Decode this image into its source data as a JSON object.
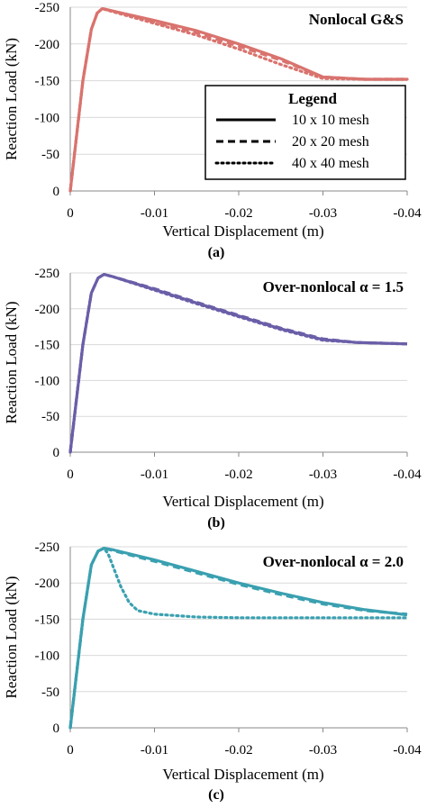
{
  "chart_data": [
    {
      "type": "line",
      "panel_label": "(a)",
      "title": "Nonlocal G&S",
      "xlabel": "Vertical Displacement (m)",
      "ylabel": "Reaction Load (kN)",
      "xlim": [
        0,
        -0.04
      ],
      "ylim": [
        0,
        -250
      ],
      "xticks": [
        0,
        -0.01,
        -0.02,
        -0.03,
        -0.04
      ],
      "xtick_labels": [
        "0",
        "-0.01",
        "-0.02",
        "-0.03",
        "-0.04"
      ],
      "yticks": [
        0,
        -50,
        -100,
        -150,
        -200,
        -250
      ],
      "ytick_labels": [
        "0",
        "-50",
        "-100",
        "-150",
        "-200",
        "-250"
      ],
      "grid": "horizontal",
      "color": "#d9736e",
      "legend": {
        "title": "Legend",
        "placement": "right",
        "entries": [
          "10 x 10 mesh",
          "20 x 20 mesh",
          "40 x 40 mesh"
        ]
      },
      "series": [
        {
          "name": "10 x 10 mesh",
          "style": "solid",
          "x": [
            0,
            -0.0015,
            -0.0025,
            -0.0032,
            -0.0038,
            -0.005,
            -0.01,
            -0.015,
            -0.02,
            -0.025,
            -0.03,
            -0.035,
            -0.04
          ],
          "y": [
            0,
            -150,
            -220,
            -242,
            -248,
            -245,
            -232,
            -218,
            -200,
            -180,
            -155,
            -152,
            -152
          ]
        },
        {
          "name": "20 x 20 mesh",
          "style": "dashed",
          "x": [
            0,
            -0.0015,
            -0.0025,
            -0.0032,
            -0.0038,
            -0.005,
            -0.01,
            -0.015,
            -0.02,
            -0.025,
            -0.03,
            -0.035,
            -0.04
          ],
          "y": [
            0,
            -150,
            -220,
            -242,
            -248,
            -245,
            -230,
            -215,
            -197,
            -178,
            -155,
            -152,
            -152
          ]
        },
        {
          "name": "40 x 40 mesh",
          "style": "dotted",
          "x": [
            0,
            -0.0015,
            -0.0025,
            -0.0032,
            -0.0038,
            -0.005,
            -0.01,
            -0.015,
            -0.02,
            -0.025,
            -0.03,
            -0.035,
            -0.04
          ],
          "y": [
            0,
            -150,
            -220,
            -242,
            -248,
            -244,
            -228,
            -212,
            -193,
            -172,
            -153,
            -152,
            -152
          ]
        }
      ]
    },
    {
      "type": "line",
      "panel_label": "(b)",
      "title": "Over-nonlocal α = 1.5",
      "xlabel": "Vertical Displacement (m)",
      "ylabel": "Reaction Load (kN)",
      "xlim": [
        0,
        -0.04
      ],
      "ylim": [
        0,
        -250
      ],
      "xticks": [
        0,
        -0.01,
        -0.02,
        -0.03,
        -0.04
      ],
      "xtick_labels": [
        "0",
        "-0.01",
        "-0.02",
        "-0.03",
        "-0.04"
      ],
      "yticks": [
        0,
        -50,
        -100,
        -150,
        -200,
        -250
      ],
      "ytick_labels": [
        "0",
        "-50",
        "-100",
        "-150",
        "-200",
        "-250"
      ],
      "grid": "horizontal",
      "color": "#6b5ea8",
      "series": [
        {
          "style": "solid",
          "x": [
            0,
            -0.0015,
            -0.0025,
            -0.0033,
            -0.004,
            -0.005,
            -0.01,
            -0.015,
            -0.02,
            -0.025,
            -0.03,
            -0.034,
            -0.04
          ],
          "y": [
            0,
            -150,
            -222,
            -243,
            -248,
            -245,
            -227,
            -208,
            -190,
            -172,
            -157,
            -153,
            -151
          ]
        },
        {
          "style": "dashed",
          "x": [
            0,
            -0.0015,
            -0.0025,
            -0.0033,
            -0.004,
            -0.005,
            -0.01,
            -0.015,
            -0.02,
            -0.025,
            -0.03,
            -0.034,
            -0.04
          ],
          "y": [
            0,
            -150,
            -222,
            -243,
            -248,
            -245,
            -228,
            -209,
            -191,
            -173,
            -158,
            -153,
            -151
          ]
        },
        {
          "style": "dotted",
          "x": [
            0,
            -0.0015,
            -0.0025,
            -0.0033,
            -0.004,
            -0.005,
            -0.01,
            -0.015,
            -0.02,
            -0.025,
            -0.03,
            -0.034,
            -0.04
          ],
          "y": [
            0,
            -150,
            -222,
            -243,
            -248,
            -245,
            -226,
            -207,
            -189,
            -171,
            -156,
            -153,
            -151
          ]
        }
      ]
    },
    {
      "type": "line",
      "panel_label": "(c)",
      "title": "Over-nonlocal α = 2.0",
      "xlabel": "Vertical Displacement (m)",
      "ylabel": "Reaction Load (kN)",
      "xlim": [
        0,
        -0.04
      ],
      "ylim": [
        0,
        -250
      ],
      "xticks": [
        0,
        -0.01,
        -0.02,
        -0.03,
        -0.04
      ],
      "xtick_labels": [
        "0",
        "-0.01",
        "-0.02",
        "-0.03",
        "-0.04"
      ],
      "yticks": [
        0,
        -50,
        -100,
        -150,
        -200,
        -250
      ],
      "ytick_labels": [
        "0",
        "-50",
        "-100",
        "-150",
        "-200",
        "-250"
      ],
      "grid": "horizontal",
      "color": "#3aa0b0",
      "series": [
        {
          "style": "solid",
          "x": [
            0,
            -0.0015,
            -0.0025,
            -0.0033,
            -0.004,
            -0.005,
            -0.01,
            -0.015,
            -0.02,
            -0.025,
            -0.03,
            -0.035,
            -0.04
          ],
          "y": [
            0,
            -150,
            -225,
            -244,
            -248,
            -246,
            -232,
            -216,
            -200,
            -186,
            -173,
            -163,
            -156
          ]
        },
        {
          "style": "dashed",
          "x": [
            0,
            -0.0015,
            -0.0025,
            -0.0033,
            -0.004,
            -0.005,
            -0.01,
            -0.015,
            -0.02,
            -0.025,
            -0.03,
            -0.035,
            -0.04
          ],
          "y": [
            0,
            -150,
            -225,
            -244,
            -248,
            -245,
            -230,
            -214,
            -198,
            -184,
            -171,
            -162,
            -157
          ]
        },
        {
          "style": "dotted",
          "x": [
            0,
            -0.0015,
            -0.0025,
            -0.0033,
            -0.004,
            -0.0045,
            -0.005,
            -0.006,
            -0.007,
            -0.008,
            -0.01,
            -0.015,
            -0.02,
            -0.03,
            -0.04
          ],
          "y": [
            0,
            -150,
            -225,
            -244,
            -248,
            -240,
            -225,
            -195,
            -173,
            -162,
            -157,
            -153,
            -152,
            -152,
            -152
          ]
        }
      ]
    }
  ]
}
